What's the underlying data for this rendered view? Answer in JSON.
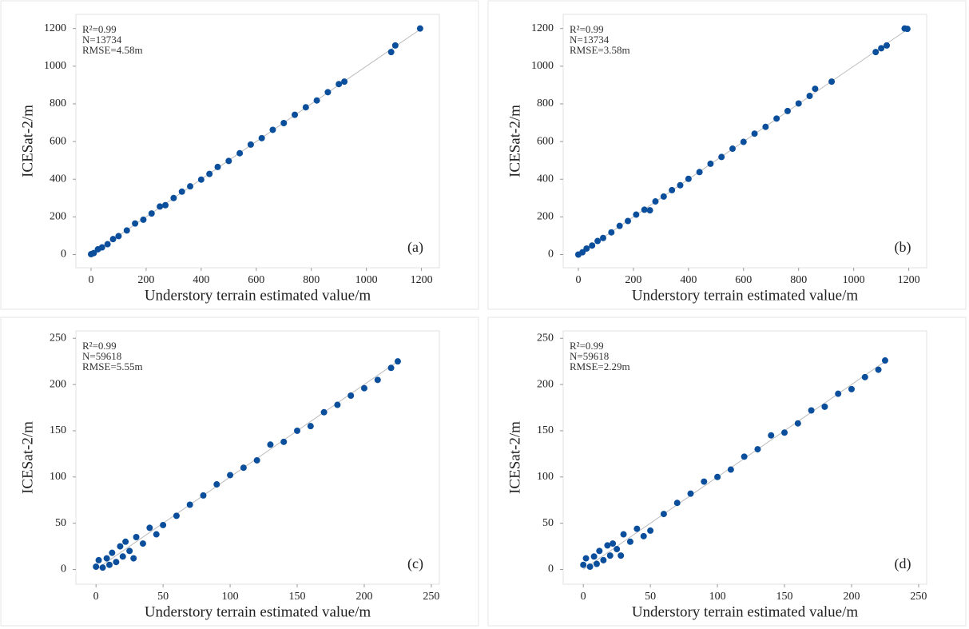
{
  "chart_data": [
    {
      "type": "scatter",
      "panel_label": "(a)",
      "annotations": [
        "R²=0.99",
        "N=13734",
        "RMSE=4.58m"
      ],
      "x_label": "Understory terrain estimated value/m",
      "y_label": "ICESat-2/m",
      "color": "#0b4f9c",
      "xlim": [
        -55,
        1265
      ],
      "ylim": [
        -70,
        1275
      ],
      "xticks": [
        0,
        200,
        400,
        600,
        800,
        1000,
        1200
      ],
      "yticks": [
        0,
        200,
        400,
        600,
        800,
        1000,
        1200
      ],
      "x": [
        0,
        10,
        25,
        40,
        60,
        80,
        100,
        130,
        160,
        190,
        220,
        250,
        270,
        300,
        330,
        360,
        400,
        430,
        460,
        500,
        540,
        580,
        620,
        660,
        700,
        740,
        780,
        820,
        860,
        900,
        920,
        1090,
        1105,
        1195
      ],
      "values": [
        2,
        8,
        28,
        38,
        55,
        82,
        98,
        128,
        165,
        185,
        218,
        255,
        262,
        300,
        334,
        362,
        398,
        428,
        465,
        497,
        538,
        584,
        618,
        662,
        698,
        742,
        782,
        818,
        862,
        905,
        918,
        1075,
        1110,
        1200
      ]
    },
    {
      "type": "scatter",
      "panel_label": "(b)",
      "annotations": [
        "R²=0.99",
        "N=13734",
        "RMSE=3.58m"
      ],
      "x_label": "Understory terrain estimated value/m",
      "y_label": "ICESat-2/m",
      "color": "#0b4f9c",
      "xlim": [
        -55,
        1265
      ],
      "ylim": [
        -70,
        1275
      ],
      "xticks": [
        0,
        200,
        400,
        600,
        800,
        1000,
        1200
      ],
      "yticks": [
        0,
        200,
        400,
        600,
        800,
        1000,
        1200
      ],
      "x": [
        0,
        15,
        30,
        50,
        70,
        90,
        120,
        150,
        180,
        210,
        240,
        260,
        280,
        310,
        340,
        370,
        400,
        440,
        480,
        520,
        560,
        600,
        640,
        680,
        720,
        760,
        800,
        840,
        860,
        920,
        1080,
        1100,
        1120,
        1185,
        1195
      ],
      "values": [
        0,
        12,
        32,
        48,
        72,
        88,
        118,
        152,
        178,
        212,
        238,
        235,
        282,
        308,
        342,
        368,
        402,
        438,
        482,
        518,
        562,
        598,
        642,
        678,
        722,
        762,
        802,
        842,
        880,
        918,
        1075,
        1095,
        1110,
        1200,
        1198
      ]
    },
    {
      "type": "scatter",
      "panel_label": "(c)",
      "annotations": [
        "R²=0.99",
        "N=59618",
        "RMSE=5.55m"
      ],
      "x_label": "Understory terrain estimated value/m",
      "y_label": "ICESat-2/m",
      "color": "#0b4f9c",
      "xlim": [
        -15,
        256
      ],
      "ylim": [
        -16,
        258
      ],
      "xticks": [
        0,
        50,
        100,
        150,
        200,
        250
      ],
      "yticks": [
        0,
        50,
        100,
        150,
        200,
        250
      ],
      "x": [
        0,
        2,
        5,
        8,
        10,
        12,
        15,
        18,
        20,
        22,
        25,
        28,
        30,
        35,
        40,
        45,
        50,
        60,
        70,
        80,
        90,
        100,
        110,
        120,
        130,
        140,
        150,
        160,
        170,
        180,
        190,
        200,
        210,
        220,
        225
      ],
      "values": [
        3,
        10,
        2,
        12,
        5,
        18,
        8,
        25,
        14,
        30,
        20,
        12,
        35,
        28,
        45,
        38,
        48,
        58,
        70,
        80,
        92,
        102,
        110,
        118,
        135,
        138,
        150,
        155,
        170,
        178,
        188,
        196,
        205,
        218,
        225
      ]
    },
    {
      "type": "scatter",
      "panel_label": "(d)",
      "annotations": [
        "R²=0.99",
        "N=59618",
        "RMSE=2.29m"
      ],
      "x_label": "Understory terrain estimated value/m",
      "y_label": "ICESat-2/m",
      "color": "#0b4f9c",
      "xlim": [
        -15,
        256
      ],
      "ylim": [
        -16,
        258
      ],
      "xticks": [
        0,
        50,
        100,
        150,
        200,
        250
      ],
      "yticks": [
        0,
        50,
        100,
        150,
        200,
        250
      ],
      "x": [
        0,
        2,
        5,
        8,
        10,
        12,
        15,
        18,
        20,
        22,
        25,
        28,
        30,
        35,
        40,
        45,
        50,
        60,
        70,
        80,
        90,
        100,
        110,
        120,
        130,
        140,
        150,
        160,
        170,
        180,
        190,
        200,
        210,
        220,
        225
      ],
      "values": [
        5,
        12,
        3,
        14,
        6,
        20,
        10,
        26,
        15,
        28,
        22,
        15,
        38,
        30,
        44,
        36,
        42,
        60,
        72,
        82,
        95,
        100,
        108,
        122,
        130,
        145,
        148,
        158,
        172,
        176,
        190,
        195,
        208,
        216,
        226
      ]
    }
  ]
}
